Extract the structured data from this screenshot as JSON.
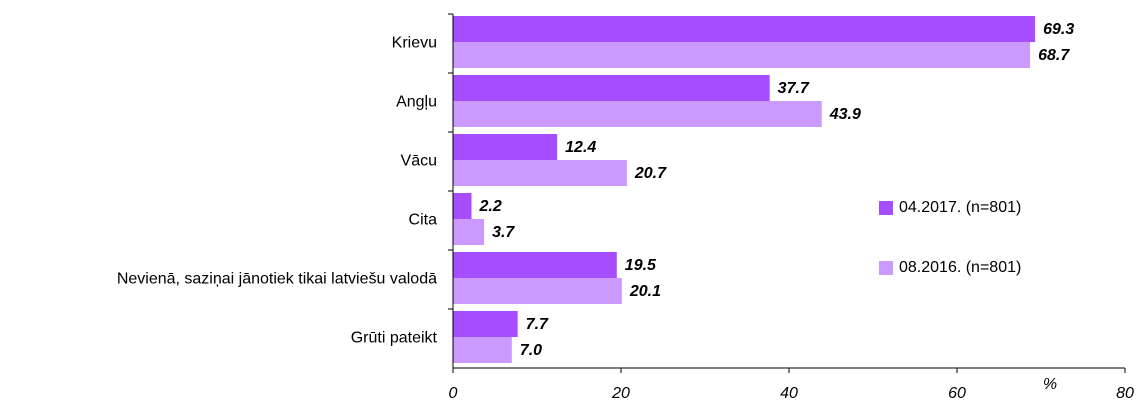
{
  "chart_data": {
    "type": "bar",
    "orientation": "horizontal",
    "categories": [
      "Krievu",
      "Angļu",
      "Vācu",
      "Cita",
      "Nevienā, saziņai jānotiek tikai latviešu valodā",
      "Grūti pateikt"
    ],
    "series": [
      {
        "name": "04.2017. (n=801)",
        "color": "#a64dff",
        "values": [
          69.3,
          37.7,
          12.4,
          2.2,
          19.5,
          7.7
        ],
        "value_labels": [
          "69.3",
          "37.7",
          "12.4",
          "2.2",
          "19.5",
          "7.7"
        ]
      },
      {
        "name": "08.2016. (n=801)",
        "color": "#cc99ff",
        "values": [
          68.7,
          43.9,
          20.7,
          3.7,
          20.1,
          7.0
        ],
        "value_labels": [
          "68.7",
          "43.9",
          "20.7",
          "3.7",
          "20.1",
          "7.0"
        ]
      }
    ],
    "xlabel": "%",
    "xlim": [
      0,
      80
    ],
    "xticks": [
      0,
      20,
      40,
      60,
      80
    ]
  }
}
